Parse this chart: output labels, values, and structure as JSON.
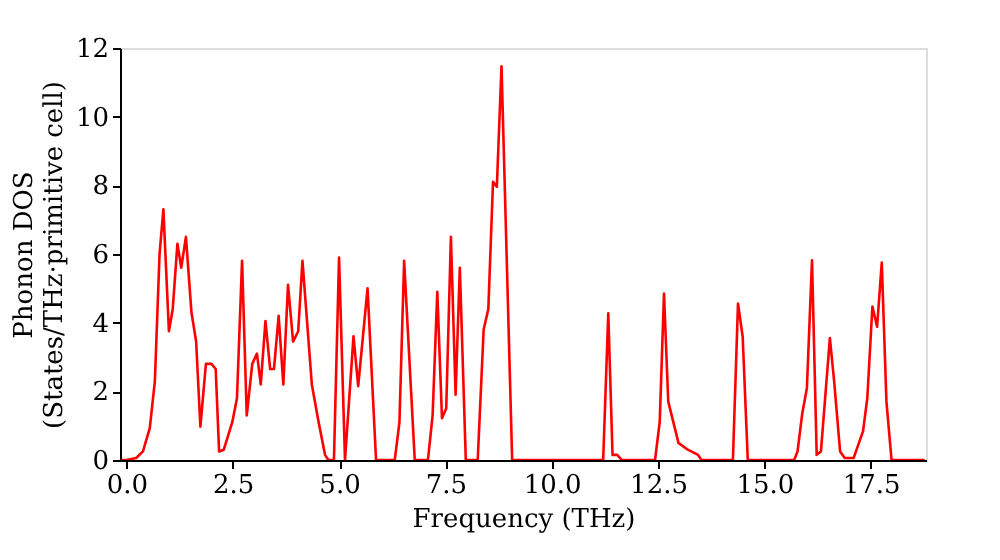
{
  "chart_data": {
    "type": "line",
    "xlabel": "Frequency (THz)",
    "ylabel": "Phonon DOS\n(States/THz·primitive cell)",
    "xlim": [
      -0.15,
      18.8
    ],
    "ylim": [
      0,
      12
    ],
    "xticks": [
      {
        "value": 0,
        "label": "0.0"
      },
      {
        "value": 2.5,
        "label": "2.5"
      },
      {
        "value": 5,
        "label": "5.0"
      },
      {
        "value": 7.5,
        "label": "7.5"
      },
      {
        "value": 10,
        "label": "10.0"
      },
      {
        "value": 12.5,
        "label": "12.5"
      },
      {
        "value": 15,
        "label": "15.0"
      },
      {
        "value": 17.5,
        "label": "17.5"
      }
    ],
    "yticks": [
      0,
      2,
      4,
      6,
      8,
      10,
      12
    ],
    "grid": false,
    "marker": "none",
    "line_style": "solid",
    "series": [
      {
        "color": "#ff0000",
        "x": [
          -0.12,
          0.0,
          0.23,
          0.39,
          0.55,
          0.67,
          0.78,
          0.87,
          1.0,
          1.09,
          1.2,
          1.29,
          1.4,
          1.53,
          1.64,
          1.74,
          1.87,
          2.0,
          2.1,
          2.18,
          2.29,
          2.49,
          2.6,
          2.72,
          2.83,
          2.96,
          3.07,
          3.16,
          3.27,
          3.38,
          3.47,
          3.58,
          3.69,
          3.8,
          3.92,
          4.04,
          4.14,
          4.36,
          4.52,
          4.67,
          4.75,
          4.88,
          5.0,
          5.14,
          5.34,
          5.45,
          5.67,
          5.87,
          6.31,
          6.42,
          6.53,
          6.78,
          7.09,
          7.2,
          7.31,
          7.42,
          7.52,
          7.63,
          7.74,
          7.84,
          7.98,
          8.26,
          8.4,
          8.51,
          8.62,
          8.71,
          8.82,
          9.07,
          11.21,
          11.33,
          11.43,
          11.54,
          11.65,
          12.43,
          12.54,
          12.64,
          12.74,
          12.98,
          13.2,
          13.44,
          13.52,
          14.26,
          14.38,
          14.49,
          14.61,
          15.7,
          15.78,
          15.89,
          16.0,
          16.12,
          16.23,
          16.33,
          16.54,
          16.64,
          16.78,
          16.89,
          17.1,
          17.32,
          17.42,
          17.54,
          17.65,
          17.76,
          17.87,
          17.99,
          18.77
        ],
        "values": [
          0,
          0,
          0.06,
          0.25,
          0.93,
          2.3,
          6.0,
          7.3,
          3.75,
          4.4,
          6.3,
          5.6,
          6.5,
          4.3,
          3.45,
          0.97,
          2.8,
          2.8,
          2.65,
          0.25,
          0.3,
          1.1,
          1.8,
          5.8,
          1.3,
          2.8,
          3.1,
          2.2,
          4.05,
          2.65,
          2.65,
          4.2,
          2.2,
          5.1,
          3.45,
          3.75,
          5.8,
          2.2,
          1.1,
          0.15,
          0,
          0,
          5.9,
          0,
          3.6,
          2.15,
          5.0,
          0,
          0,
          1.1,
          5.8,
          0,
          0,
          1.3,
          4.9,
          1.22,
          1.5,
          6.5,
          1.9,
          5.6,
          0,
          0,
          3.8,
          4.4,
          8.1,
          7.96,
          11.47,
          0,
          0,
          4.27,
          0.15,
          0.15,
          0,
          0,
          1.12,
          4.85,
          1.7,
          0.5,
          0.3,
          0.15,
          0,
          0,
          4.56,
          3.59,
          0,
          0,
          0.25,
          1.35,
          2.1,
          5.82,
          0.15,
          0.25,
          3.55,
          2.3,
          0.25,
          0.06,
          0.06,
          0.84,
          1.8,
          4.47,
          3.88,
          5.75,
          1.7,
          0,
          0
        ]
      }
    ]
  }
}
